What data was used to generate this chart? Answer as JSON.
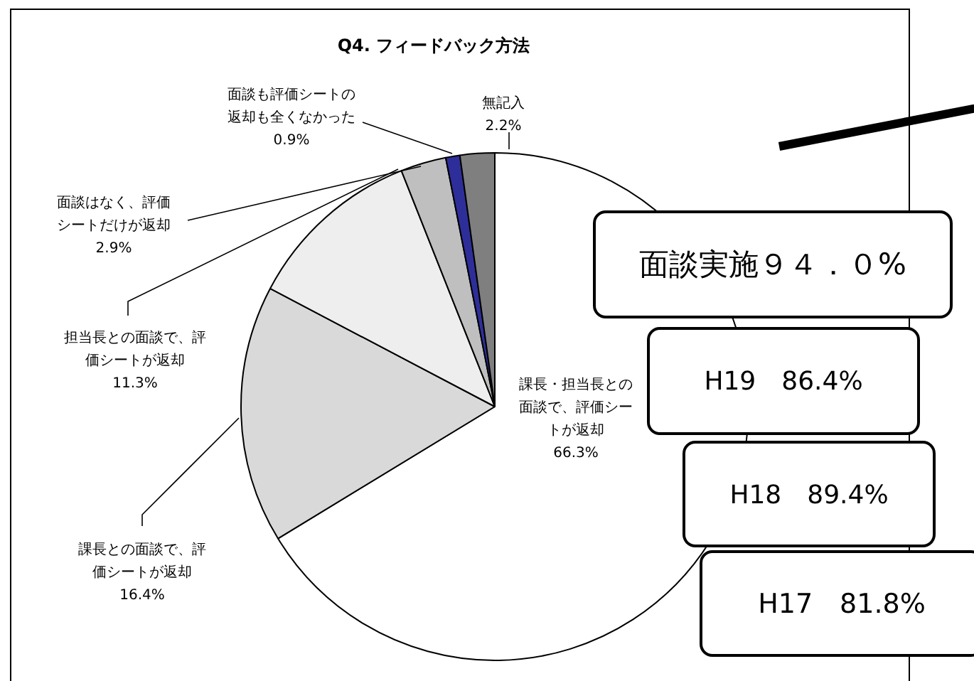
{
  "chart_data": {
    "type": "pie",
    "title": "Q4. フィードバック方法",
    "categories": [
      "課長・担当長との面談で、評価シートが返却",
      "課長との面談で、評価シートが返却",
      "担当長との面談で、評価シートが返却",
      "面談はなく、評価シートだけが返却",
      "面談も評価シートの返却も全くなかった",
      "無記入"
    ],
    "values": [
      66.3,
      16.4,
      11.3,
      2.9,
      0.9,
      2.2
    ],
    "value_labels": [
      "66.3%",
      "16.4%",
      "11.3%",
      "2.9%",
      "0.9%",
      "2.2%"
    ],
    "colors": [
      "#ffffff",
      "#d9d9d9",
      "#eeeeee",
      "#bfbfbf",
      "#2e2e9a",
      "#7f7f7f"
    ],
    "annotations": [
      "面談実施９４．０%",
      "H19　86.4%",
      "H18　89.4%",
      "H17　81.8%"
    ]
  }
}
